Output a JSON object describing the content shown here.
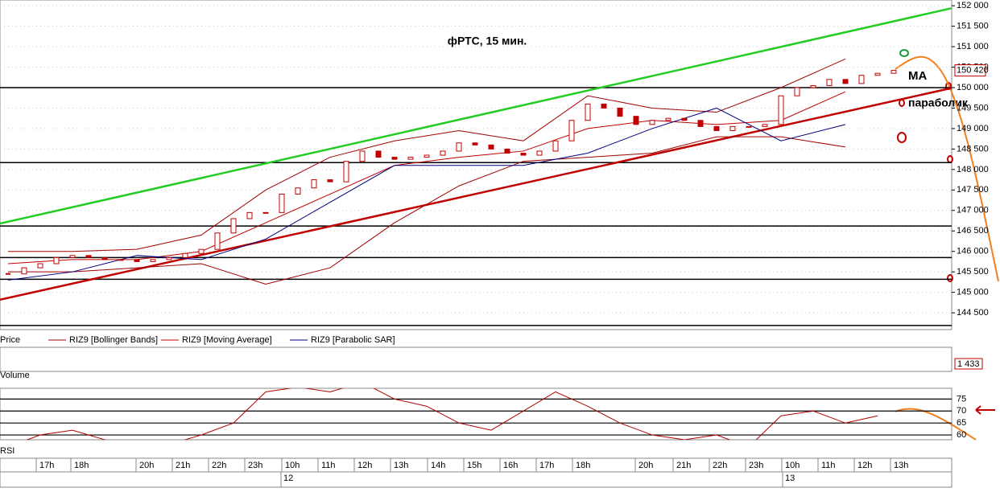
{
  "chart_data": {
    "type": "candlestick",
    "title": "фРТС,  15 мин.",
    "ylim": [
      144090,
      152140
    ],
    "yticks": [
      {
        "value": 152000,
        "label": "152 000"
      },
      {
        "value": 151500,
        "label": "151 500"
      },
      {
        "value": 151000,
        "label": "151 000"
      },
      {
        "value": 150500,
        "label": "150 500"
      },
      {
        "value": 150000,
        "label": "150 000"
      },
      {
        "value": 149500,
        "label": "149 500"
      },
      {
        "value": 149000,
        "label": "149 000"
      },
      {
        "value": 148500,
        "label": "148 500"
      },
      {
        "value": 148000,
        "label": "148 000"
      },
      {
        "value": 147500,
        "label": "147 500"
      },
      {
        "value": 147000,
        "label": "147 000"
      },
      {
        "value": 146500,
        "label": "146 500"
      },
      {
        "value": 146000,
        "label": "146 000"
      },
      {
        "value": 145500,
        "label": "145 500"
      },
      {
        "value": 145000,
        "label": "145 000"
      },
      {
        "value": 144500,
        "label": "144 500"
      }
    ],
    "close": [
      145450,
      145600,
      145700,
      145850,
      145900,
      145850,
      145800,
      145800,
      145750,
      145800,
      145850,
      145950,
      146050,
      146450,
      146800,
      146950,
      146950,
      147400,
      147550,
      147750,
      147700,
      148200,
      148450,
      148300,
      148250,
      148300,
      148350,
      148450,
      148650,
      148600,
      148500,
      148400,
      148350,
      148450,
      148700,
      149200,
      149600,
      149500,
      149300,
      149100,
      149200,
      149250,
      149200,
      149050,
      148950,
      149050,
      149050,
      149100,
      149800,
      150000,
      150050,
      150200,
      150100,
      150300,
      150350,
      150420
    ],
    "last_price": {
      "value": 150420,
      "label": "150 420"
    },
    "candle_color": "#c00000",
    "series": [
      {
        "name": "RIZ9 [Bollinger Bands]",
        "color": "#a00000",
        "values": [
          146000,
          146000,
          146050,
          146400,
          147500,
          148300,
          148700,
          148950,
          148700,
          149800,
          149500,
          149400,
          150000,
          150700
        ]
      },
      {
        "name": "RIZ9 [Bollinger Bands]",
        "color": "#a00000",
        "values": [
          145500,
          145500,
          145600,
          145700,
          145200,
          145600,
          146700,
          147600,
          148200,
          148300,
          148400,
          148800,
          148800,
          148550
        ]
      },
      {
        "name": "RIZ9 [Moving Average]",
        "color": "#c00000",
        "values": [
          145700,
          145800,
          145800,
          146000,
          146700,
          147400,
          148100,
          148300,
          148450,
          149000,
          149200,
          149100,
          149200,
          149900
        ]
      },
      {
        "name": "RIZ9 [Parabolic SAR]",
        "color": "#000080",
        "values": [
          145300,
          145500,
          145900,
          145800,
          146300,
          147200,
          148100,
          148100,
          148100,
          148400,
          149000,
          149500,
          148700,
          149100
        ]
      }
    ],
    "price_label": "Price",
    "levels": [
      150000,
      148170,
      146620,
      145850,
      145320,
      144190
    ],
    "trendlines": [
      {
        "start": 146680,
        "end": 151940,
        "color": "#22cc22"
      },
      {
        "start": 144820,
        "end": 149990,
        "color": "#c00000"
      }
    ],
    "annotations": [
      "МА",
      "параболик"
    ],
    "volume": {
      "label": "Volume",
      "value": {
        "value": 1433,
        "label": "1 433"
      }
    },
    "rsi": {
      "label": "RSI",
      "ylim": [
        58,
        79.5
      ],
      "yticks": [
        75,
        70,
        65,
        60
      ],
      "color": "#b00000",
      "values": [
        55,
        60,
        62,
        58,
        55,
        56,
        60,
        65,
        78,
        80,
        78,
        82,
        75,
        72,
        65,
        62,
        70,
        78,
        72,
        65,
        60,
        58,
        60,
        55,
        68,
        70,
        65,
        68
      ]
    },
    "time_labels": [
      "17h",
      "18h",
      "20h",
      "21h",
      "22h",
      "23h",
      "10h",
      "11h",
      "12h",
      "13h",
      "14h",
      "15h",
      "16h",
      "17h",
      "18h",
      "20h",
      "21h",
      "22h",
      "23h",
      "10h",
      "11h",
      "12h",
      "13h"
    ],
    "day_labels": [
      "12",
      "13"
    ]
  }
}
